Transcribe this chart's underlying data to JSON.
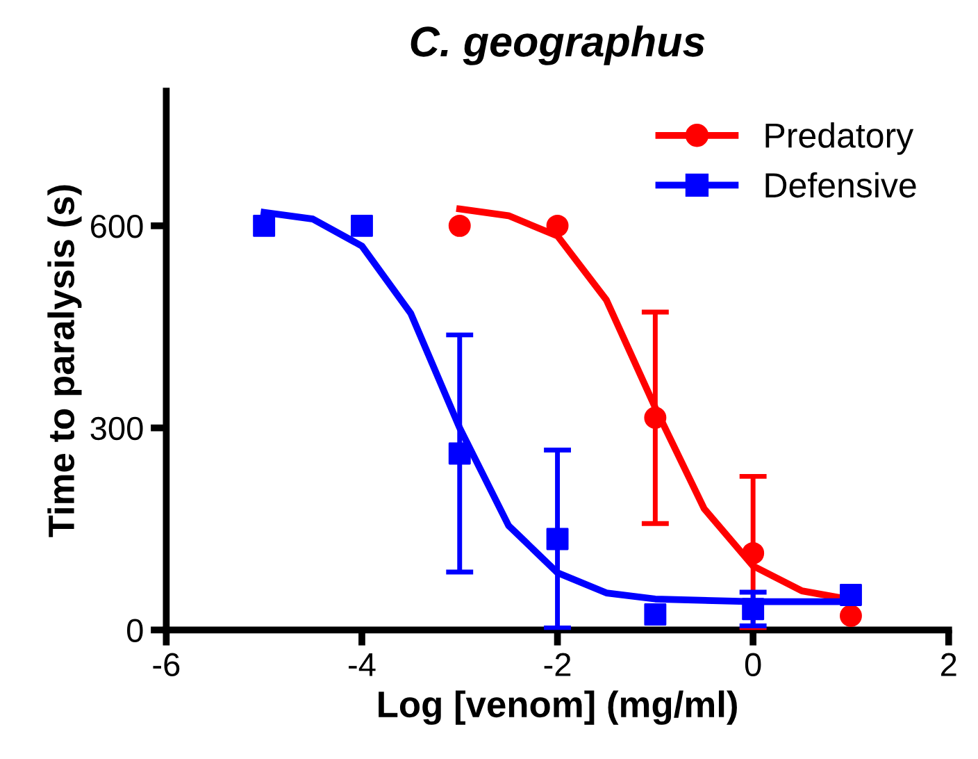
{
  "chart_data": {
    "type": "scatter",
    "title": "C. geographus",
    "xlabel": "Log [venom] (mg/ml)",
    "ylabel": "Time to paralysis (s)",
    "xlim": [
      -6,
      2
    ],
    "ylim": [
      0,
      800
    ],
    "xticks": [
      -6,
      -4,
      -2,
      0,
      2
    ],
    "yticks": [
      0,
      300,
      600
    ],
    "grid": false,
    "legend": "top right",
    "series": [
      {
        "name": "Predatory",
        "color": "#ff0000",
        "marker": "circle",
        "x": [
          -3,
          -2,
          -1,
          0,
          1
        ],
        "values": [
          600,
          600,
          315,
          114,
          21
        ],
        "errors": [
          null,
          null,
          157,
          114,
          null
        ]
      },
      {
        "name": "Defensive",
        "color": "#0000ff",
        "marker": "square",
        "x": [
          -5,
          -4,
          -3,
          -2,
          -1,
          0,
          1
        ],
        "values": [
          600,
          600,
          262,
          135,
          23,
          31,
          52
        ],
        "errors": [
          null,
          null,
          176,
          132,
          null,
          25,
          null
        ]
      },
      {
        "type": "line",
        "color": "#ff0000",
        "x": [
          -3,
          -2.5,
          -2,
          -1.5,
          -1,
          -0.5,
          0,
          0.5,
          1
        ],
        "values": [
          625,
          615,
          585,
          490,
          330,
          180,
          95,
          58,
          45
        ]
      },
      {
        "type": "line",
        "color": "#0000ff",
        "x": [
          -5,
          -4.5,
          -4,
          -3.5,
          -3,
          -2.5,
          -2,
          -1.5,
          -1,
          0,
          1
        ],
        "values": [
          620,
          610,
          570,
          470,
          300,
          155,
          85,
          55,
          46,
          42,
          42
        ]
      }
    ]
  }
}
